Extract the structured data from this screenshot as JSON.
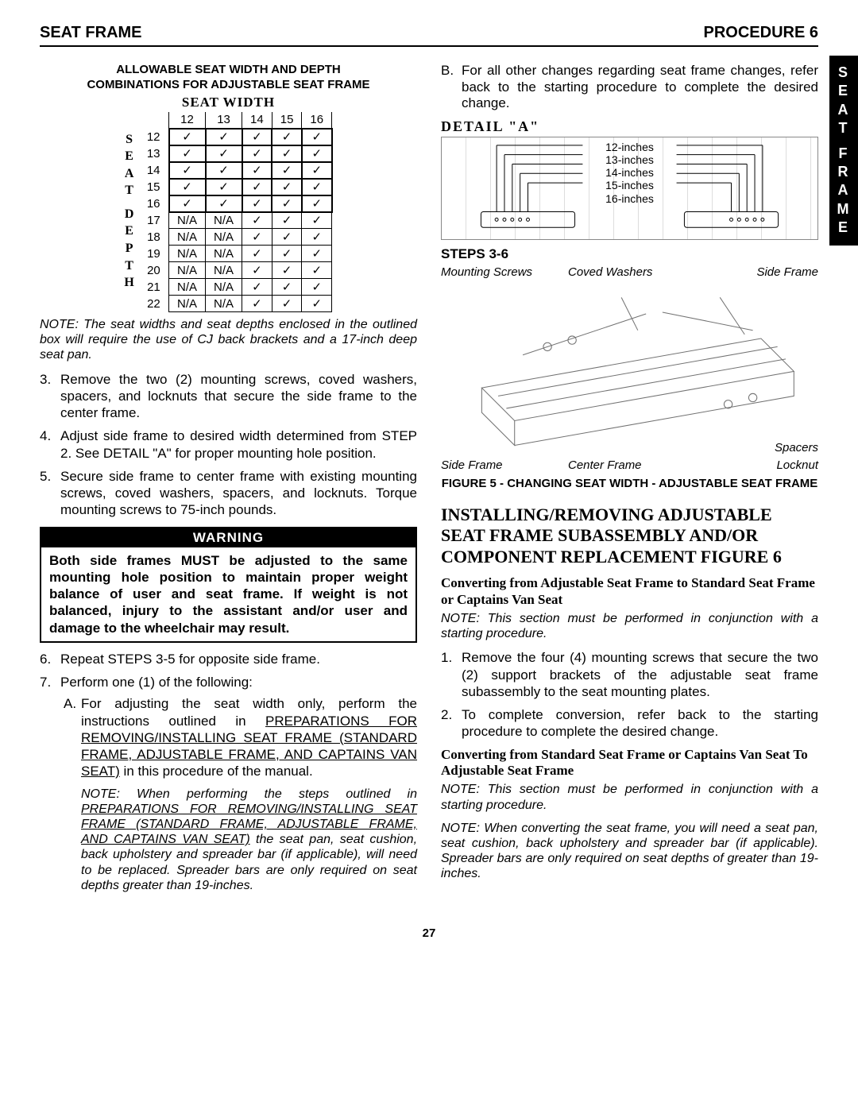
{
  "header": {
    "left": "SEAT FRAME",
    "right": "PROCEDURE 6"
  },
  "side_tab": [
    "S",
    "E",
    "A",
    "T",
    " ",
    "F",
    "R",
    "A",
    "M",
    "E"
  ],
  "page_number": "27",
  "matrix": {
    "title_line1": "ALLOWABLE SEAT WIDTH AND DEPTH",
    "title_line2": "COMBINATIONS FOR ADJUSTABLE SEAT FRAME",
    "width_label": "SEAT WIDTH",
    "depth_label": [
      "S",
      "E",
      "A",
      "T",
      "",
      "D",
      "E",
      "P",
      "T",
      "H"
    ],
    "col_headers": [
      "12",
      "13",
      "14",
      "15",
      "16"
    ],
    "row_headers": [
      "12",
      "13",
      "14",
      "15",
      "16",
      "17",
      "18",
      "19",
      "20",
      "21",
      "22"
    ],
    "cells": [
      [
        "✓",
        "✓",
        "✓",
        "✓",
        "✓"
      ],
      [
        "✓",
        "✓",
        "✓",
        "✓",
        "✓"
      ],
      [
        "✓",
        "✓",
        "✓",
        "✓",
        "✓"
      ],
      [
        "✓",
        "✓",
        "✓",
        "✓",
        "✓"
      ],
      [
        "✓",
        "✓",
        "✓",
        "✓",
        "✓"
      ],
      [
        "N/A",
        "N/A",
        "✓",
        "✓",
        "✓"
      ],
      [
        "N/A",
        "N/A",
        "✓",
        "✓",
        "✓"
      ],
      [
        "N/A",
        "N/A",
        "✓",
        "✓",
        "✓"
      ],
      [
        "N/A",
        "N/A",
        "✓",
        "✓",
        "✓"
      ],
      [
        "N/A",
        "N/A",
        "✓",
        "✓",
        "✓"
      ],
      [
        "N/A",
        "N/A",
        "✓",
        "✓",
        "✓"
      ]
    ],
    "note": "NOTE: The seat widths and seat depths enclosed in the outlined box will require the use of CJ back brackets and a 17-inch deep seat pan."
  },
  "left_steps": {
    "s3": "Remove the two (2) mounting screws, coved washers, spacers, and locknuts that secure the side frame to the center frame.",
    "s4": "Adjust side frame to desired width determined from STEP 2. See DETAIL \"A\" for proper mounting hole position.",
    "s5": "Secure side frame to center frame with existing mounting screws, coved washers, spacers, and locknuts. Torque mounting screws to 75-inch pounds.",
    "s6": "Repeat STEPS 3-5 for opposite side frame.",
    "s7": "Perform one (1) of the following:",
    "s7a_pre": "For adjusting the seat width only, perform the instructions outlined in ",
    "s7a_link": "PREPARATIONS FOR REMOVING/INSTALLING SEAT FRAME (STANDARD FRAME, ADJUSTABLE FRAME, AND CAPTAINS VAN SEAT)",
    "s7a_post": " in this procedure of the manual.",
    "s7_note_pre": "NOTE: When performing the steps outlined in ",
    "s7_note_link": "PREPARATIONS FOR REMOVING/INSTALLING SEAT FRAME (STANDARD FRAME, ADJUSTABLE FRAME, AND CAPTAINS VAN SEAT)",
    "s7_note_post": " the seat pan, seat cushion, back upholstery and spreader bar (if applicable), will need to be replaced. Spreader bars are only required on seat depths greater than 19-inches."
  },
  "warning": {
    "title": "WARNING",
    "body": "Both side frames MUST be adjusted to the same mounting hole position to maintain proper weight balance of user and seat frame. If weight is not balanced, injury to the assistant and/or user and damage to the wheelchair may result."
  },
  "right": {
    "b_text": "For all other changes regarding seat frame changes, refer back to the starting procedure to complete the desired change.",
    "detail_label": "DETAIL \"A\"",
    "measure_lines": [
      "12-inches",
      "13-inches",
      "14-inches",
      "15-inches",
      "16-inches"
    ],
    "steps_label": "STEPS 3-6",
    "labels": {
      "mounting_screws": "Mounting Screws",
      "coved_washers": "Coved Washers",
      "side_frame_top": "Side Frame",
      "side_frame_bot": "Side Frame",
      "center_frame": "Center Frame",
      "spacers": "Spacers",
      "locknut": "Locknut"
    },
    "fig5": "FIGURE 5 - CHANGING SEAT WIDTH - ADJUSTABLE SEAT FRAME",
    "section_heading": "INSTALLING/REMOVING ADJUSTABLE SEAT FRAME SUBASSEMBLY AND/OR COMPONENT REPLACEMENT FIGURE 6",
    "subA": "Converting from Adjustable Seat Frame to Standard Seat Frame or Captains Van Seat",
    "noteA": "NOTE: This section must be performed in conjunction with a starting procedure.",
    "a1": "Remove the four (4) mounting screws that secure the two (2) support brackets of the adjustable seat frame subassembly to the seat mounting plates.",
    "a2": "To complete conversion, refer back to the starting procedure to complete the desired change.",
    "subB": "Converting from Standard Seat Frame or Captains Van Seat To Adjustable Seat Frame",
    "noteB1": "NOTE: This section must be performed in conjunction with a starting procedure.",
    "noteB2": "NOTE: When converting the seat frame, you will need a seat pan, seat cushion, back upholstery and spreader bar (if applicable). Spreader bars are only required on seat depths of greater than 19-inches."
  }
}
